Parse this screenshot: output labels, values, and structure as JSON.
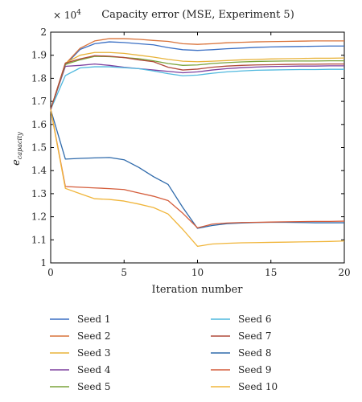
{
  "chart_data": {
    "type": "line",
    "title": "Capacity error (MSE, Experiment 5)",
    "xlabel": "Iteration number",
    "ylabel": "e",
    "ylabel_subscript": "capacity",
    "scale_note": "× 10",
    "scale_exponent": "4",
    "xlim": [
      0,
      20
    ],
    "ylim": [
      1.0,
      2.0
    ],
    "x_ticks": [
      "0",
      "5",
      "10",
      "15",
      "20"
    ],
    "y_ticks": [
      "1",
      "1.1",
      "1.2",
      "1.3",
      "1.4",
      "1.5",
      "1.6",
      "1.7",
      "1.8",
      "1.9",
      "2"
    ],
    "legend_position": "bottom",
    "x": [
      0,
      1,
      2,
      3,
      4,
      5,
      6,
      7,
      8,
      9,
      10,
      11,
      12,
      13,
      14,
      15,
      16,
      17,
      18,
      19,
      20
    ],
    "series": [
      {
        "name": "Seed 1",
        "color": "#3a6fc4",
        "values": [
          1.665,
          1.858,
          1.925,
          1.95,
          1.958,
          1.955,
          1.95,
          1.945,
          1.933,
          1.924,
          1.921,
          1.924,
          1.928,
          1.931,
          1.934,
          1.936,
          1.937,
          1.938,
          1.939,
          1.94,
          1.94
        ]
      },
      {
        "name": "Seed 2",
        "color": "#d9733a",
        "values": [
          1.665,
          1.862,
          1.93,
          1.962,
          1.972,
          1.972,
          1.969,
          1.964,
          1.96,
          1.95,
          1.947,
          1.95,
          1.954,
          1.956,
          1.958,
          1.959,
          1.96,
          1.961,
          1.962,
          1.962,
          1.962
        ]
      },
      {
        "name": "Seed 3",
        "color": "#e8b33a",
        "values": [
          1.665,
          1.866,
          1.9,
          1.912,
          1.912,
          1.908,
          1.9,
          1.892,
          1.882,
          1.874,
          1.872,
          1.874,
          1.877,
          1.88,
          1.882,
          1.884,
          1.885,
          1.886,
          1.887,
          1.887,
          1.888
        ]
      },
      {
        "name": "Seed 4",
        "color": "#7d3f9e",
        "values": [
          1.665,
          1.852,
          1.856,
          1.862,
          1.856,
          1.848,
          1.842,
          1.836,
          1.83,
          1.824,
          1.828,
          1.836,
          1.842,
          1.846,
          1.849,
          1.851,
          1.852,
          1.853,
          1.853,
          1.854,
          1.854
        ]
      },
      {
        "name": "Seed 5",
        "color": "#7aa33a",
        "values": [
          1.665,
          1.86,
          1.88,
          1.895,
          1.894,
          1.89,
          1.885,
          1.876,
          1.864,
          1.856,
          1.858,
          1.864,
          1.868,
          1.871,
          1.873,
          1.874,
          1.875,
          1.875,
          1.875,
          1.876,
          1.876
        ]
      },
      {
        "name": "Seed 6",
        "color": "#4fb8de",
        "values": [
          1.665,
          1.812,
          1.845,
          1.85,
          1.85,
          1.846,
          1.842,
          1.832,
          1.82,
          1.811,
          1.814,
          1.822,
          1.828,
          1.832,
          1.835,
          1.836,
          1.837,
          1.838,
          1.838,
          1.839,
          1.839
        ]
      },
      {
        "name": "Seed 7",
        "color": "#b04a3a",
        "values": [
          1.665,
          1.866,
          1.884,
          1.898,
          1.896,
          1.89,
          1.88,
          1.872,
          1.848,
          1.836,
          1.84,
          1.848,
          1.853,
          1.856,
          1.858,
          1.859,
          1.86,
          1.861,
          1.861,
          1.862,
          1.862
        ]
      },
      {
        "name": "Seed 8",
        "color": "#2f6aab",
        "values": [
          1.665,
          1.45,
          1.453,
          1.455,
          1.457,
          1.447,
          1.414,
          1.374,
          1.34,
          1.24,
          1.15,
          1.162,
          1.17,
          1.173,
          1.175,
          1.176,
          1.176,
          1.175,
          1.174,
          1.174,
          1.174
        ]
      },
      {
        "name": "Seed 9",
        "color": "#d45c3a",
        "values": [
          1.665,
          1.331,
          1.328,
          1.325,
          1.322,
          1.318,
          1.303,
          1.289,
          1.27,
          1.215,
          1.152,
          1.168,
          1.173,
          1.175,
          1.176,
          1.177,
          1.178,
          1.179,
          1.18,
          1.18,
          1.181
        ]
      },
      {
        "name": "Seed 10",
        "color": "#f0b53a",
        "values": [
          1.665,
          1.323,
          1.3,
          1.278,
          1.275,
          1.268,
          1.255,
          1.24,
          1.212,
          1.145,
          1.072,
          1.082,
          1.085,
          1.087,
          1.088,
          1.089,
          1.09,
          1.091,
          1.092,
          1.093,
          1.095
        ]
      }
    ]
  }
}
